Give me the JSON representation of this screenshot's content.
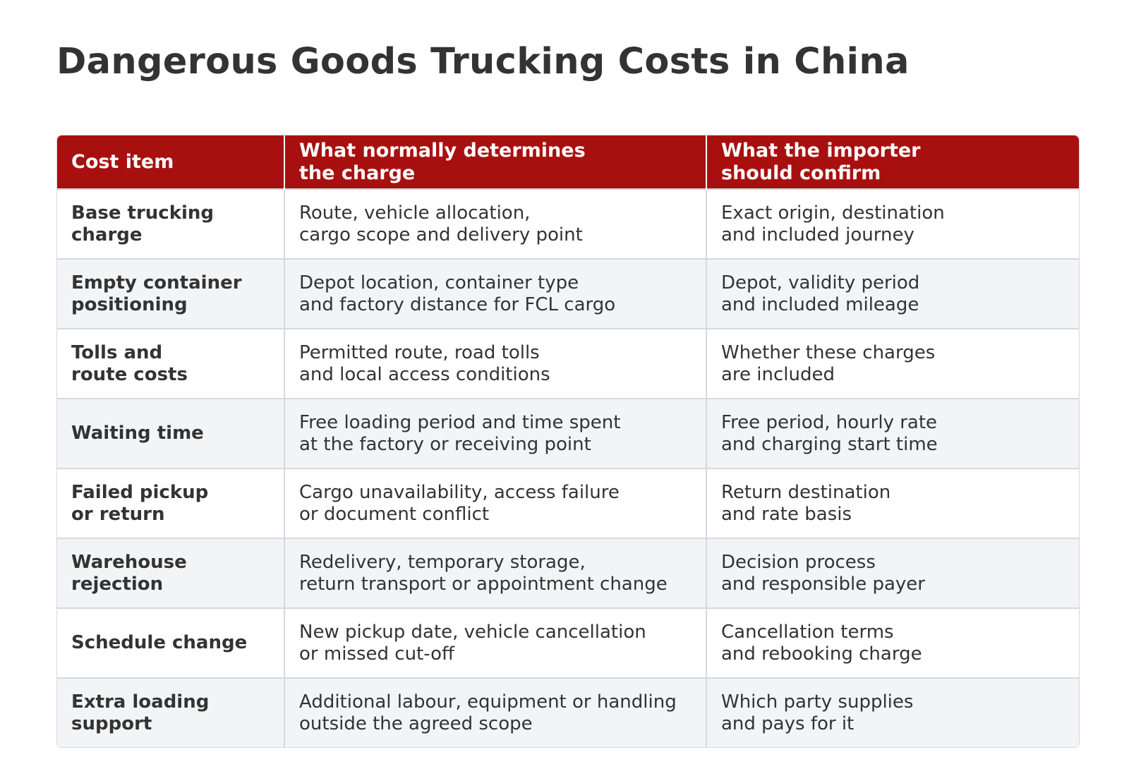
{
  "title": "Dangerous Goods Trucking Costs in China",
  "table": {
    "header": [
      [
        "Cost item"
      ],
      [
        "What normally determines",
        "the charge"
      ],
      [
        "What the importer",
        "should confirm"
      ]
    ],
    "rows": [
      [
        [
          "Base trucking",
          "charge"
        ],
        [
          "Route, vehicle allocation,",
          "cargo scope and delivery point"
        ],
        [
          "Exact origin, destination",
          "and included journey"
        ]
      ],
      [
        [
          "Empty container",
          "positioning"
        ],
        [
          "Depot location, container type",
          "and factory distance for FCL cargo"
        ],
        [
          "Depot, validity period",
          "and included mileage"
        ]
      ],
      [
        [
          "Tolls and",
          "route costs"
        ],
        [
          "Permitted route, road tolls",
          "and local access conditions"
        ],
        [
          "Whether these charges",
          "are included"
        ]
      ],
      [
        [
          "Waiting time"
        ],
        [
          "Free loading period and time spent",
          "at the factory or receiving point"
        ],
        [
          "Free period, hourly rate",
          "and charging start time"
        ]
      ],
      [
        [
          "Failed pickup",
          "or return"
        ],
        [
          "Cargo unavailability, access failure",
          "or document conflict"
        ],
        [
          "Return destination",
          "and rate basis"
        ]
      ],
      [
        [
          "Warehouse",
          "rejection"
        ],
        [
          "Redelivery, temporary storage,",
          "return transport or appointment change"
        ],
        [
          "Decision process",
          "and responsible payer"
        ]
      ],
      [
        [
          "Schedule change"
        ],
        [
          "New pickup date, vehicle cancellation",
          "or missed cut-off"
        ],
        [
          "Cancellation terms",
          "and rebooking charge"
        ]
      ],
      [
        [
          "Extra loading",
          "support"
        ],
        [
          "Additional labour, equipment or handling",
          "outside the agreed scope"
        ],
        [
          "Which party supplies",
          "and pays for it"
        ]
      ]
    ]
  }
}
